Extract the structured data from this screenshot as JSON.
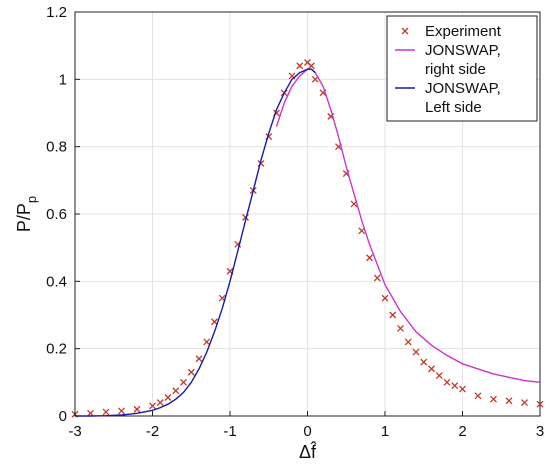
{
  "chart_data": {
    "type": "line",
    "title": "",
    "xlabel": "Δf̂",
    "ylabel": "P/P",
    "ylabel_subscript": "p",
    "xlim": [
      -3,
      3
    ],
    "ylim": [
      0,
      1.2
    ],
    "xticks": [
      "-3",
      "-2",
      "-1",
      "0",
      "1",
      "2",
      "3"
    ],
    "yticks": [
      "0",
      "0.2",
      "0.4",
      "0.6",
      "0.8",
      "1",
      "1.2"
    ],
    "grid": true,
    "legend_placement": "top-right",
    "legend": [
      {
        "lines": [
          "Experiment"
        ],
        "marker": "x",
        "color": "#c0392b"
      },
      {
        "lines": [
          "JONSWAP,",
          "right side"
        ],
        "marker": "line",
        "color": "#cc33cc"
      },
      {
        "lines": [
          "JONSWAP,",
          "Left side"
        ],
        "marker": "line",
        "color": "#1a1aa6"
      }
    ],
    "series": [
      {
        "name": "Experiment",
        "style": "scatter-x",
        "color": "#c0392b",
        "x": [
          -3.0,
          -2.8,
          -2.6,
          -2.4,
          -2.2,
          -2.0,
          -1.9,
          -1.8,
          -1.7,
          -1.6,
          -1.5,
          -1.4,
          -1.3,
          -1.2,
          -1.1,
          -1.0,
          -0.9,
          -0.8,
          -0.7,
          -0.6,
          -0.5,
          -0.4,
          -0.3,
          -0.2,
          -0.1,
          0.0,
          0.05,
          0.1,
          0.2,
          0.3,
          0.4,
          0.5,
          0.6,
          0.7,
          0.8,
          0.9,
          1.0,
          1.1,
          1.2,
          1.3,
          1.4,
          1.5,
          1.6,
          1.7,
          1.8,
          1.9,
          2.0,
          2.2,
          2.4,
          2.6,
          2.8,
          3.0
        ],
        "y": [
          0.005,
          0.008,
          0.012,
          0.015,
          0.02,
          0.03,
          0.04,
          0.055,
          0.075,
          0.1,
          0.13,
          0.17,
          0.22,
          0.28,
          0.35,
          0.43,
          0.51,
          0.59,
          0.67,
          0.75,
          0.83,
          0.9,
          0.96,
          1.01,
          1.04,
          1.05,
          1.04,
          1.0,
          0.96,
          0.89,
          0.8,
          0.72,
          0.63,
          0.55,
          0.47,
          0.41,
          0.35,
          0.3,
          0.26,
          0.22,
          0.19,
          0.16,
          0.14,
          0.12,
          0.1,
          0.09,
          0.08,
          0.06,
          0.05,
          0.045,
          0.04,
          0.035
        ]
      },
      {
        "name": "JONSWAP, right side",
        "style": "line",
        "color": "#cc33cc",
        "x": [
          -0.4,
          -0.3,
          -0.2,
          -0.1,
          0.0,
          0.05,
          0.1,
          0.2,
          0.3,
          0.4,
          0.5,
          0.6,
          0.7,
          0.8,
          0.9,
          1.0,
          1.2,
          1.4,
          1.6,
          1.8,
          2.0,
          2.2,
          2.4,
          2.6,
          2.8,
          3.0
        ],
        "y": [
          0.86,
          0.93,
          0.98,
          1.01,
          1.03,
          1.03,
          1.02,
          0.98,
          0.91,
          0.83,
          0.74,
          0.66,
          0.58,
          0.51,
          0.45,
          0.39,
          0.31,
          0.25,
          0.21,
          0.18,
          0.155,
          0.14,
          0.125,
          0.115,
          0.105,
          0.1
        ]
      },
      {
        "name": "JONSWAP, Left side",
        "style": "line",
        "color": "#1a1aa6",
        "x": [
          -3.0,
          -2.8,
          -2.6,
          -2.4,
          -2.2,
          -2.0,
          -1.9,
          -1.8,
          -1.7,
          -1.6,
          -1.5,
          -1.4,
          -1.3,
          -1.2,
          -1.1,
          -1.0,
          -0.9,
          -0.8,
          -0.7,
          -0.6,
          -0.5,
          -0.4,
          -0.3,
          -0.2,
          -0.1,
          0.0,
          0.05,
          0.1
        ],
        "y": [
          0.0,
          0.0,
          0.001,
          0.003,
          0.008,
          0.017,
          0.025,
          0.035,
          0.05,
          0.07,
          0.1,
          0.14,
          0.19,
          0.25,
          0.32,
          0.4,
          0.49,
          0.58,
          0.67,
          0.76,
          0.84,
          0.91,
          0.96,
          1.0,
          1.02,
          1.03,
          1.03,
          1.02
        ]
      }
    ]
  }
}
